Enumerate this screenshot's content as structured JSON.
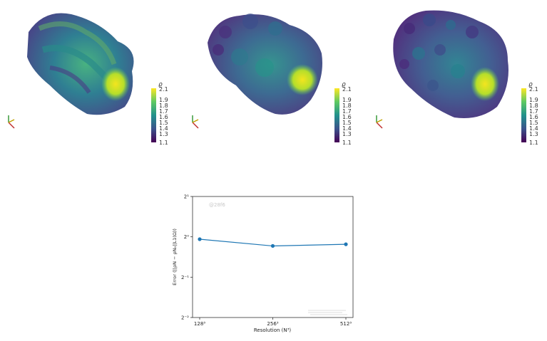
{
  "panels": [
    {
      "colorbar": {
        "title": "ϱ",
        "ticks": [
          "2.1",
          "1.9",
          "1.8",
          "1.7",
          "1.6",
          "1.5",
          "1.4",
          "1.3",
          "1.1"
        ]
      }
    },
    {
      "colorbar": {
        "title": "ϱ",
        "ticks": [
          "2.1",
          "1.9",
          "1.8",
          "1.7",
          "1.6",
          "1.5",
          "1.4",
          "1.3",
          "1.1"
        ]
      }
    },
    {
      "colorbar": {
        "title": "ϱ",
        "ticks": [
          "2.1",
          "1.9",
          "1.8",
          "1.7",
          "1.6",
          "1.5",
          "1.4",
          "1.3",
          "1.1"
        ]
      }
    }
  ],
  "colors": {
    "viridis": [
      "#440154",
      "#3b528b",
      "#21918c",
      "#5ec962",
      "#fde725"
    ],
    "line": "#1f77b4"
  },
  "chart_data": {
    "type": "line",
    "title": "",
    "annotation": "@28f6",
    "xlabel": "Resolution (N³)",
    "ylabel": "Error (||ρN − ρN₀||L1(Ω))",
    "x_categories": [
      "128³",
      "256³",
      "512³"
    ],
    "y_scale": "log2",
    "yticks": [
      {
        "value": 2,
        "label": "2¹"
      },
      {
        "value": 1,
        "label": "2⁰"
      },
      {
        "value": 0.5,
        "label": "2⁻¹"
      },
      {
        "value": 0.25,
        "label": "2⁻²"
      }
    ],
    "ylim": [
      0.25,
      2
    ],
    "series": [
      {
        "values": [
          0.96,
          0.855,
          0.88
        ]
      }
    ]
  }
}
